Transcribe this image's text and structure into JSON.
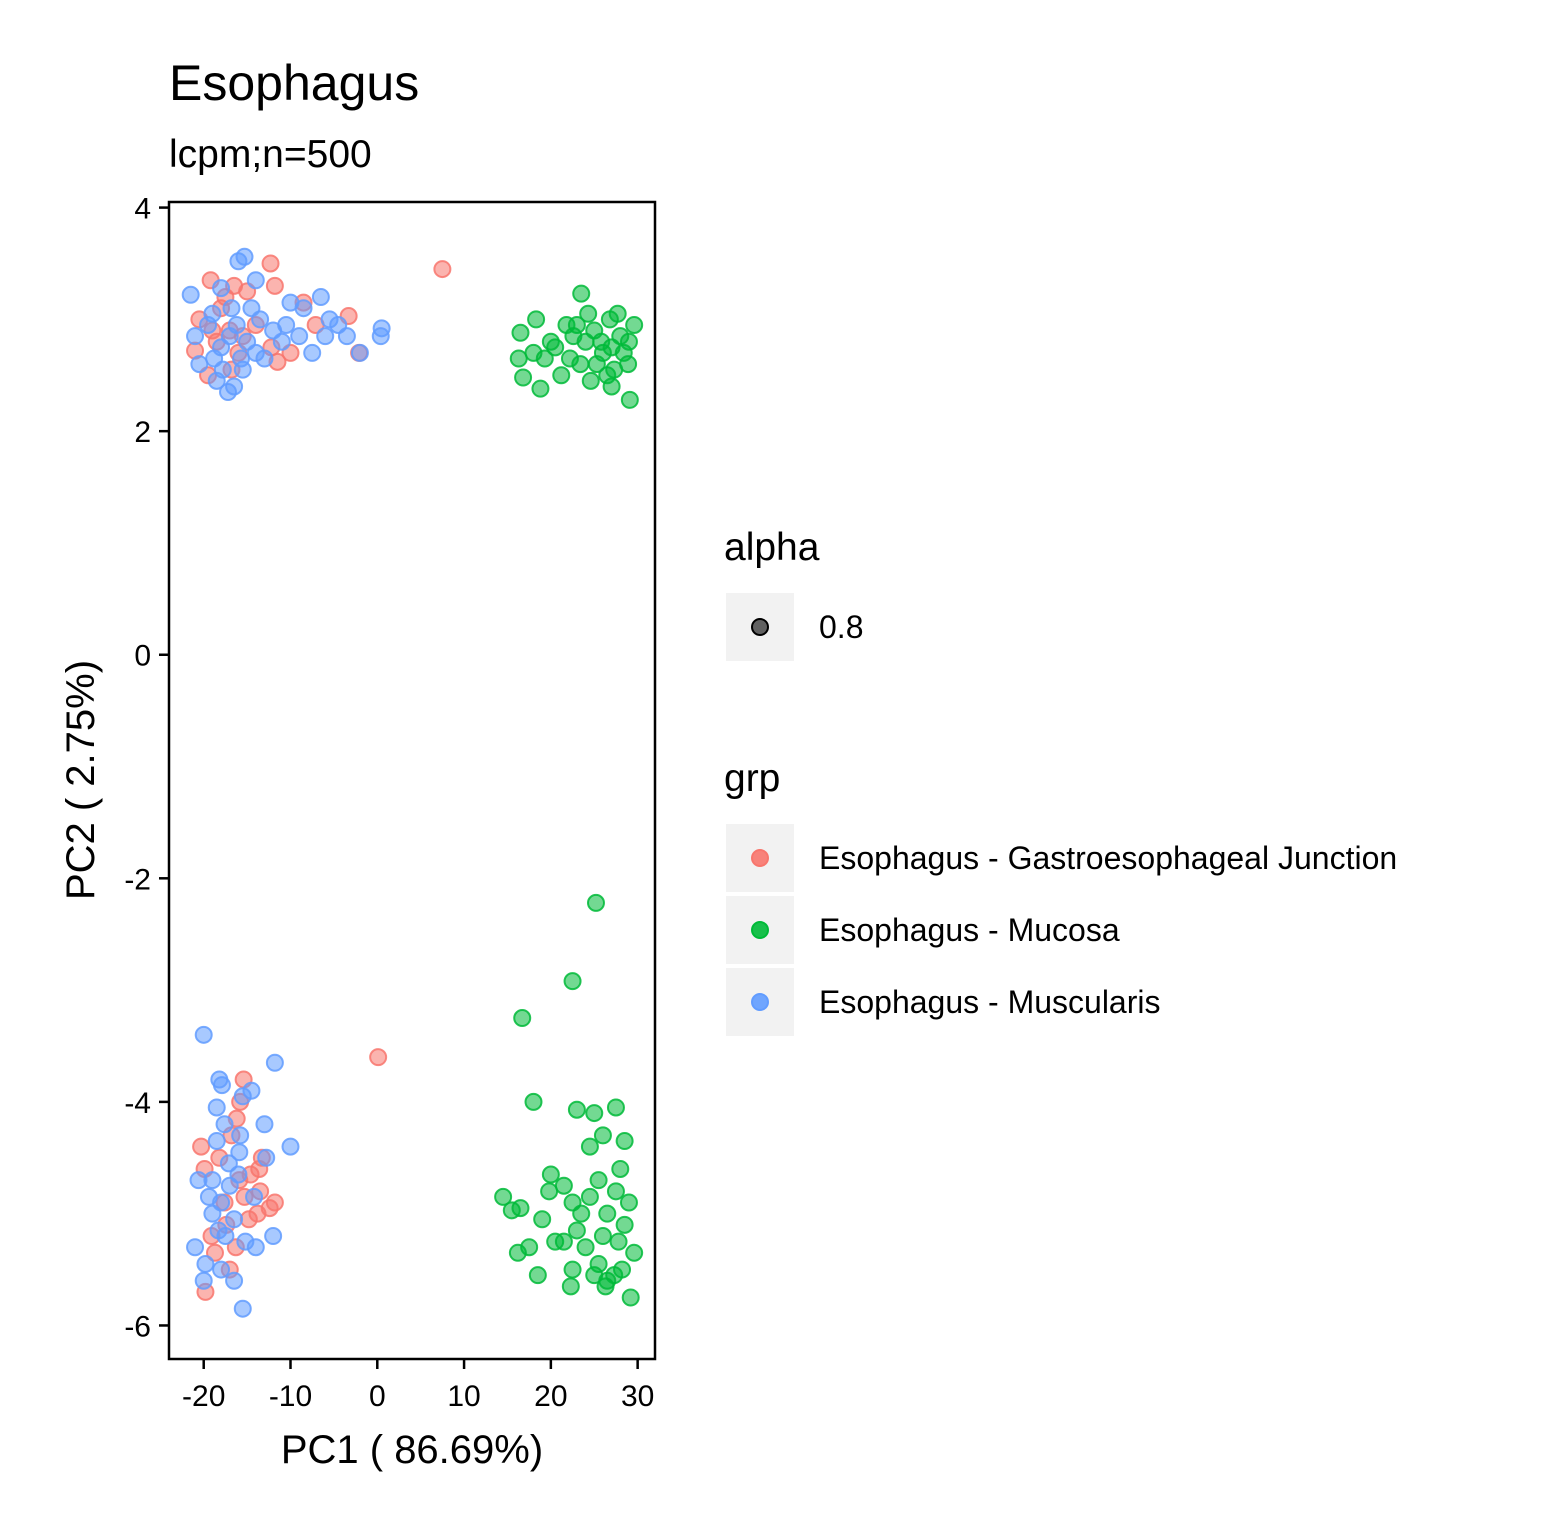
{
  "chart_data": {
    "type": "scatter",
    "title": "Esophagus",
    "subtitle": "lcpm;n=500",
    "xlabel": "PC1 ( 86.69%)",
    "ylabel": "PC2 ( 2.75%)",
    "xlim": [
      -24,
      32
    ],
    "ylim": [
      -6.3,
      4.05
    ],
    "x_ticks": [
      -20,
      -10,
      0,
      10,
      20,
      30
    ],
    "y_ticks": [
      -6,
      -4,
      -2,
      0,
      2,
      4
    ],
    "grid": false,
    "point_alpha": 0.8,
    "legend_position": "right",
    "legends": [
      {
        "title": "alpha",
        "items": [
          {
            "label": "0.8",
            "color": "#000000"
          }
        ]
      },
      {
        "title": "grp",
        "items": [
          {
            "label": "Esophagus - Gastroesophageal Junction",
            "color": "#F8766D"
          },
          {
            "label": "Esophagus - Mucosa",
            "color": "#00BA38"
          },
          {
            "label": "Esophagus - Muscularis",
            "color": "#619CFF"
          }
        ]
      }
    ],
    "series": [
      {
        "name": "Esophagus - Gastroesophageal Junction",
        "color": "#F8766D",
        "points": [
          [
            7.5,
            3.45
          ],
          [
            -19.2,
            3.35
          ],
          [
            -16.5,
            3.3
          ],
          [
            -12.3,
            3.5
          ],
          [
            -11.8,
            3.3
          ],
          [
            -8.5,
            3.15
          ],
          [
            -3.3,
            3.03
          ],
          [
            -7.1,
            2.95
          ],
          [
            -2.1,
            2.7
          ],
          [
            -11.5,
            2.62
          ],
          [
            -12.2,
            2.75
          ],
          [
            -21.0,
            2.72
          ],
          [
            -20.5,
            3.0
          ],
          [
            -15.0,
            3.25
          ],
          [
            -17.5,
            3.2
          ],
          [
            -18.5,
            2.8
          ],
          [
            -17.0,
            2.9
          ],
          [
            -16.0,
            2.7
          ],
          [
            -19.5,
            2.5
          ],
          [
            -14.0,
            2.95
          ],
          [
            -10.0,
            2.7
          ],
          [
            -18.0,
            3.1
          ],
          [
            -16.8,
            2.55
          ],
          [
            -15.5,
            2.85
          ],
          [
            -19.0,
            2.9
          ],
          [
            0.1,
            -3.6
          ],
          [
            -15.4,
            -3.8
          ],
          [
            -15.8,
            -4.0
          ],
          [
            -16.2,
            -4.15
          ],
          [
            -13.3,
            -4.5
          ],
          [
            -13.6,
            -4.6
          ],
          [
            -11.8,
            -4.9
          ],
          [
            -13.5,
            -4.8
          ],
          [
            -14.8,
            -5.05
          ],
          [
            -13.8,
            -5.0
          ],
          [
            -12.4,
            -4.95
          ],
          [
            -19.8,
            -5.7
          ],
          [
            -18.7,
            -5.35
          ],
          [
            -16.8,
            -4.3
          ],
          [
            -15.9,
            -4.7
          ],
          [
            -20.3,
            -4.4
          ],
          [
            -19.9,
            -4.6
          ],
          [
            -17.4,
            -5.1
          ],
          [
            -17.6,
            -4.9
          ],
          [
            -16.3,
            -5.3
          ],
          [
            -19.1,
            -5.2
          ],
          [
            -18.2,
            -4.5
          ],
          [
            -15.3,
            -4.85
          ],
          [
            -17.0,
            -5.5
          ],
          [
            -14.6,
            -4.65
          ]
        ]
      },
      {
        "name": "Esophagus - Mucosa",
        "color": "#00BA38",
        "points": [
          [
            23.5,
            3.23
          ],
          [
            18.3,
            3.0
          ],
          [
            16.5,
            2.88
          ],
          [
            16.3,
            2.65
          ],
          [
            16.8,
            2.48
          ],
          [
            18.8,
            2.38
          ],
          [
            20.5,
            2.75
          ],
          [
            21.8,
            2.95
          ],
          [
            22.6,
            2.85
          ],
          [
            24.0,
            2.8
          ],
          [
            25.0,
            2.9
          ],
          [
            26.0,
            2.7
          ],
          [
            27.0,
            2.75
          ],
          [
            28.0,
            2.85
          ],
          [
            28.9,
            2.6
          ],
          [
            29.1,
            2.28
          ],
          [
            29.6,
            2.95
          ],
          [
            27.7,
            3.05
          ],
          [
            26.5,
            2.5
          ],
          [
            25.3,
            2.6
          ],
          [
            24.6,
            2.45
          ],
          [
            23.4,
            2.6
          ],
          [
            22.2,
            2.65
          ],
          [
            21.2,
            2.5
          ],
          [
            20.0,
            2.8
          ],
          [
            19.3,
            2.65
          ],
          [
            27.3,
            2.55
          ],
          [
            28.4,
            2.7
          ],
          [
            24.3,
            3.05
          ],
          [
            26.8,
            3.0
          ],
          [
            25.8,
            2.8
          ],
          [
            23.0,
            2.95
          ],
          [
            27.0,
            2.4
          ],
          [
            18.0,
            2.7
          ],
          [
            29.0,
            2.8
          ],
          [
            25.2,
            -2.22
          ],
          [
            22.5,
            -2.92
          ],
          [
            16.7,
            -3.25
          ],
          [
            18.0,
            -4.0
          ],
          [
            23.0,
            -4.07
          ],
          [
            25.0,
            -4.1
          ],
          [
            27.5,
            -4.05
          ],
          [
            26.0,
            -4.3
          ],
          [
            28.5,
            -4.35
          ],
          [
            24.5,
            -4.4
          ],
          [
            20.0,
            -4.65
          ],
          [
            19.8,
            -4.8
          ],
          [
            14.5,
            -4.85
          ],
          [
            15.5,
            -4.97
          ],
          [
            16.5,
            -4.95
          ],
          [
            19.0,
            -5.05
          ],
          [
            21.5,
            -4.75
          ],
          [
            22.5,
            -4.9
          ],
          [
            23.5,
            -5.0
          ],
          [
            24.5,
            -4.85
          ],
          [
            25.5,
            -4.7
          ],
          [
            26.5,
            -5.0
          ],
          [
            27.5,
            -4.8
          ],
          [
            28.5,
            -5.1
          ],
          [
            29.0,
            -4.9
          ],
          [
            16.2,
            -5.35
          ],
          [
            17.5,
            -5.3
          ],
          [
            18.5,
            -5.55
          ],
          [
            20.5,
            -5.25
          ],
          [
            21.5,
            -5.25
          ],
          [
            22.5,
            -5.5
          ],
          [
            22.3,
            -5.65
          ],
          [
            25.5,
            -5.45
          ],
          [
            26.5,
            -5.6
          ],
          [
            27.3,
            -5.55
          ],
          [
            28.2,
            -5.5
          ],
          [
            29.2,
            -5.75
          ],
          [
            29.6,
            -5.35
          ],
          [
            24.0,
            -5.3
          ],
          [
            26.0,
            -5.2
          ],
          [
            27.8,
            -5.25
          ],
          [
            23.0,
            -5.15
          ],
          [
            25.0,
            -5.55
          ],
          [
            26.3,
            -5.65
          ],
          [
            28.0,
            -4.6
          ]
        ]
      },
      {
        "name": "Esophagus - Muscularis",
        "color": "#619CFF",
        "points": [
          [
            -16.0,
            3.52
          ],
          [
            -15.3,
            3.56
          ],
          [
            -14.0,
            3.35
          ],
          [
            -21.5,
            3.22
          ],
          [
            -18.0,
            3.28
          ],
          [
            -10.0,
            3.15
          ],
          [
            -8.5,
            3.1
          ],
          [
            -6.5,
            3.2
          ],
          [
            -5.5,
            3.0
          ],
          [
            -6.0,
            2.85
          ],
          [
            -4.5,
            2.95
          ],
          [
            -3.5,
            2.85
          ],
          [
            0.5,
            2.92
          ],
          [
            0.4,
            2.85
          ],
          [
            -2.0,
            2.7
          ],
          [
            -7.5,
            2.7
          ],
          [
            -9.0,
            2.85
          ],
          [
            -12.0,
            2.9
          ],
          [
            -13.0,
            2.65
          ],
          [
            -15.5,
            2.55
          ],
          [
            -16.5,
            2.4
          ],
          [
            -17.2,
            2.35
          ],
          [
            -18.5,
            2.45
          ],
          [
            -20.5,
            2.6
          ],
          [
            -21.0,
            2.85
          ],
          [
            -19.5,
            2.95
          ],
          [
            -18.0,
            2.75
          ],
          [
            -17.0,
            2.85
          ],
          [
            -16.2,
            2.95
          ],
          [
            -15.0,
            2.8
          ],
          [
            -14.0,
            2.7
          ],
          [
            -13.5,
            3.0
          ],
          [
            -17.8,
            2.55
          ],
          [
            -19.0,
            3.05
          ],
          [
            -16.8,
            3.1
          ],
          [
            -15.7,
            2.65
          ],
          [
            -18.8,
            2.65
          ],
          [
            -14.5,
            3.1
          ],
          [
            -11.0,
            2.8
          ],
          [
            -10.5,
            2.95
          ],
          [
            -20.0,
            -3.4
          ],
          [
            -11.8,
            -3.65
          ],
          [
            -17.9,
            -3.85
          ],
          [
            -18.2,
            -3.8
          ],
          [
            -15.5,
            -3.95
          ],
          [
            -14.5,
            -3.9
          ],
          [
            -18.5,
            -4.05
          ],
          [
            -13.0,
            -4.2
          ],
          [
            -10.0,
            -4.4
          ],
          [
            -12.8,
            -4.5
          ],
          [
            -15.8,
            -4.3
          ],
          [
            -17.6,
            -4.2
          ],
          [
            -18.5,
            -4.35
          ],
          [
            -19.0,
            -4.7
          ],
          [
            -18.0,
            -4.9
          ],
          [
            -17.0,
            -4.75
          ],
          [
            -16.0,
            -4.65
          ],
          [
            -14.2,
            -4.85
          ],
          [
            -20.6,
            -4.7
          ],
          [
            -21.0,
            -5.3
          ],
          [
            -19.8,
            -5.45
          ],
          [
            -20.0,
            -5.6
          ],
          [
            -18.0,
            -5.5
          ],
          [
            -17.5,
            -5.2
          ],
          [
            -16.5,
            -5.05
          ],
          [
            -15.2,
            -5.25
          ],
          [
            -14.0,
            -5.3
          ],
          [
            -12.0,
            -5.2
          ],
          [
            -16.5,
            -5.6
          ],
          [
            -15.5,
            -5.85
          ],
          [
            -19.0,
            -5.0
          ],
          [
            -18.3,
            -5.15
          ],
          [
            -17.1,
            -4.55
          ],
          [
            -15.9,
            -4.45
          ],
          [
            -19.4,
            -4.85
          ]
        ]
      }
    ]
  }
}
